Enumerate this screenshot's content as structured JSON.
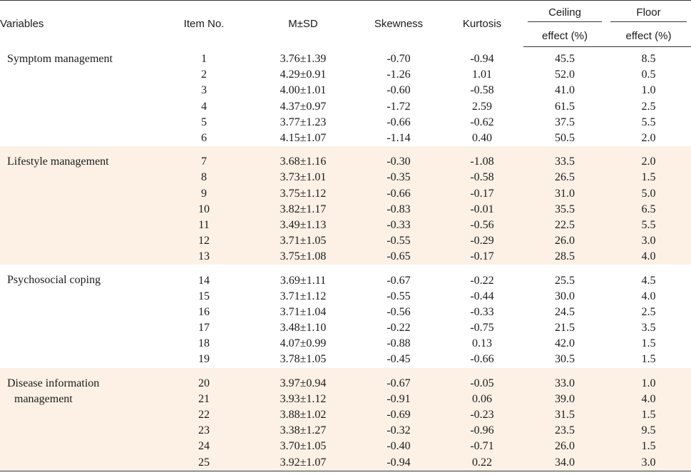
{
  "headers": {
    "variables": "Variables",
    "item_no": "Item No.",
    "msd": "M±SD",
    "skewness": "Skewness",
    "kurtosis": "Kurtosis",
    "ceiling_top": "Ceiling",
    "ceiling_bottom": "effect (%)",
    "floor_top": "Floor",
    "floor_bottom": "effect (%)"
  },
  "groups": [
    {
      "name_line1": "Symptom management",
      "name_line2": "",
      "shaded": false,
      "rows": [
        {
          "item": "1",
          "msd": "3.76±1.39",
          "skew": "-0.70",
          "kurt": "-0.94",
          "ceil": "45.5",
          "floor": "8.5"
        },
        {
          "item": "2",
          "msd": "4.29±0.91",
          "skew": "-1.26",
          "kurt": "1.01",
          "ceil": "52.0",
          "floor": "0.5"
        },
        {
          "item": "3",
          "msd": "4.00±1.01",
          "skew": "-0.60",
          "kurt": "-0.58",
          "ceil": "41.0",
          "floor": "1.0"
        },
        {
          "item": "4",
          "msd": "4.37±0.97",
          "skew": "-1.72",
          "kurt": "2.59",
          "ceil": "61.5",
          "floor": "2.5"
        },
        {
          "item": "5",
          "msd": "3.77±1.23",
          "skew": "-0.66",
          "kurt": "-0.62",
          "ceil": "37.5",
          "floor": "5.5"
        },
        {
          "item": "6",
          "msd": "4.15±1.07",
          "skew": "-1.14",
          "kurt": "0.40",
          "ceil": "50.5",
          "floor": "2.0"
        }
      ]
    },
    {
      "name_line1": "Lifestyle management",
      "name_line2": "",
      "shaded": true,
      "rows": [
        {
          "item": "7",
          "msd": "3.68±1.16",
          "skew": "-0.30",
          "kurt": "-1.08",
          "ceil": "33.5",
          "floor": "2.0"
        },
        {
          "item": "8",
          "msd": "3.73±1.01",
          "skew": "-0.35",
          "kurt": "-0.58",
          "ceil": "26.5",
          "floor": "1.5"
        },
        {
          "item": "9",
          "msd": "3.75±1.12",
          "skew": "-0.66",
          "kurt": "-0.17",
          "ceil": "31.0",
          "floor": "5.0"
        },
        {
          "item": "10",
          "msd": "3.82±1.17",
          "skew": "-0.83",
          "kurt": "-0.01",
          "ceil": "35.5",
          "floor": "6.5"
        },
        {
          "item": "11",
          "msd": "3.49±1.13",
          "skew": "-0.33",
          "kurt": "-0.56",
          "ceil": "22.5",
          "floor": "5.5"
        },
        {
          "item": "12",
          "msd": "3.71±1.05",
          "skew": "-0.55",
          "kurt": "-0.29",
          "ceil": "26.0",
          "floor": "3.0"
        },
        {
          "item": "13",
          "msd": "3.75±1.08",
          "skew": "-0.65",
          "kurt": "-0.17",
          "ceil": "28.5",
          "floor": "4.0"
        }
      ]
    },
    {
      "name_line1": "Psychosocial coping",
      "name_line2": "",
      "shaded": false,
      "rows": [
        {
          "item": "14",
          "msd": "3.69±1.11",
          "skew": "-0.67",
          "kurt": "-0.22",
          "ceil": "25.5",
          "floor": "4.5"
        },
        {
          "item": "15",
          "msd": "3.71±1.12",
          "skew": "-0.55",
          "kurt": "-0.44",
          "ceil": "30.0",
          "floor": "4.0"
        },
        {
          "item": "16",
          "msd": "3.71±1.04",
          "skew": "-0.56",
          "kurt": "-0.33",
          "ceil": "24.5",
          "floor": "2.5"
        },
        {
          "item": "17",
          "msd": "3.48±1.10",
          "skew": "-0.22",
          "kurt": "-0.75",
          "ceil": "21.5",
          "floor": "3.5"
        },
        {
          "item": "18",
          "msd": "4.07±0.99",
          "skew": "-0.88",
          "kurt": "0.13",
          "ceil": "42.0",
          "floor": "1.5"
        },
        {
          "item": "19",
          "msd": "3.78±1.05",
          "skew": "-0.45",
          "kurt": "-0.66",
          "ceil": "30.5",
          "floor": "1.5"
        }
      ]
    },
    {
      "name_line1": "Disease information",
      "name_line2": "management",
      "shaded": true,
      "rows": [
        {
          "item": "20",
          "msd": "3.97±0.94",
          "skew": "-0.67",
          "kurt": "-0.05",
          "ceil": "33.0",
          "floor": "1.0"
        },
        {
          "item": "21",
          "msd": "3.93±1.12",
          "skew": "-0.91",
          "kurt": "0.06",
          "ceil": "39.0",
          "floor": "4.0"
        },
        {
          "item": "22",
          "msd": "3.88±1.02",
          "skew": "-0.69",
          "kurt": "-0.23",
          "ceil": "31.5",
          "floor": "1.5"
        },
        {
          "item": "23",
          "msd": "3.38±1.27",
          "skew": "-0.32",
          "kurt": "-0.96",
          "ceil": "23.5",
          "floor": "9.5"
        },
        {
          "item": "24",
          "msd": "3.70±1.05",
          "skew": "-0.40",
          "kurt": "-0.71",
          "ceil": "26.0",
          "floor": "1.5"
        },
        {
          "item": "25",
          "msd": "3.92±1.07",
          "skew": "-0.94",
          "kurt": "0.22",
          "ceil": "34.0",
          "floor": "3.0"
        }
      ]
    }
  ]
}
